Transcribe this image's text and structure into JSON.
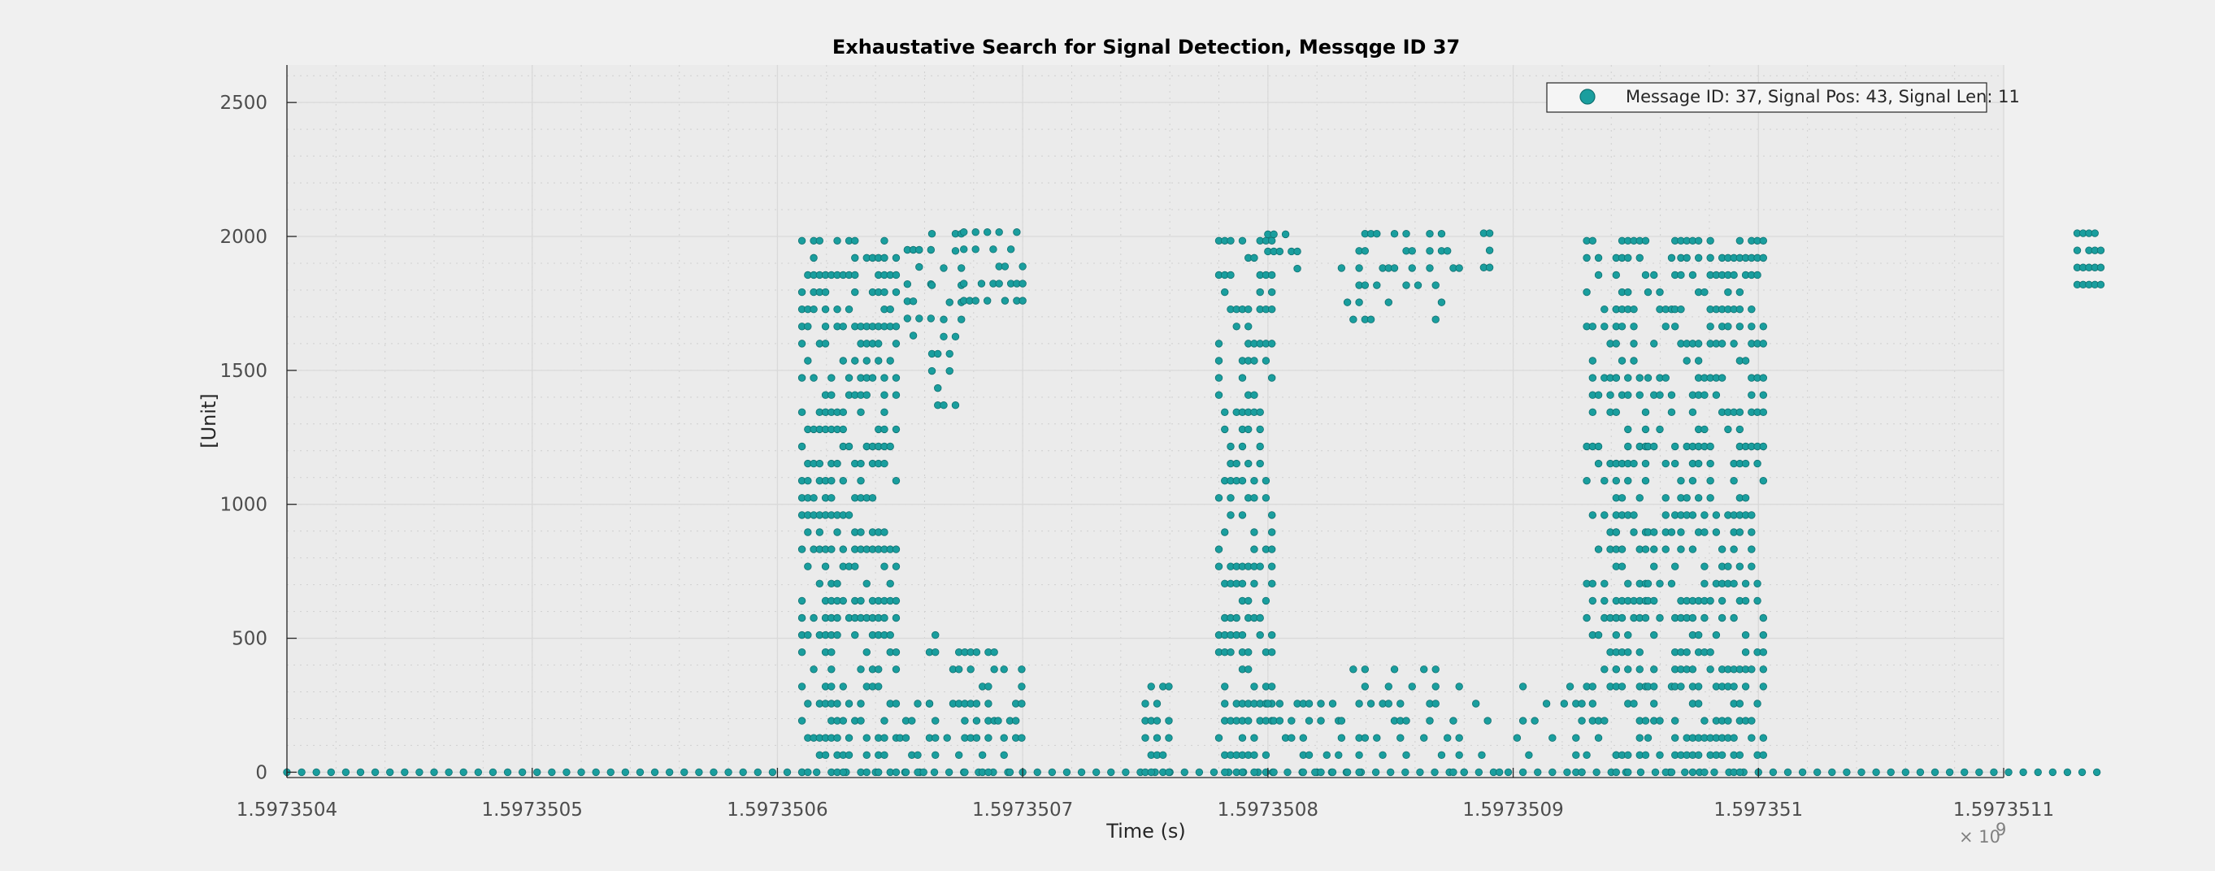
{
  "chart_data": {
    "type": "scatter",
    "title": "Exhaustative Search for Signal Detection, Messqge ID 37",
    "xlabel": "Time (s)",
    "ylabel": "[Unit]",
    "x_exponent_label": "× 10",
    "x_exponent_power": "9",
    "xlim": [
      1.5973504,
      1.5973511
    ],
    "ylim": [
      -20,
      2640
    ],
    "x_ticks": [
      1.5973504,
      1.5973505,
      1.5973506,
      1.5973507,
      1.5973508,
      1.5973509,
      1.597351,
      1.5973511
    ],
    "x_tick_labels": [
      "1.5973504",
      "1.5973505",
      "1.5973506",
      "1.5973507",
      "1.5973508",
      "1.5973509",
      "1.597351",
      "1.5973511"
    ],
    "y_ticks": [
      0,
      500,
      1000,
      1500,
      2000,
      2500
    ],
    "y_tick_labels": [
      "0",
      "500",
      "1000",
      "1500",
      "2000",
      "2500"
    ],
    "grid": true,
    "minor_grid": true,
    "legend_position": "top-right",
    "marker_color": "#1a9e9e",
    "marker_edge_color": "#0f7070",
    "series": [
      {
        "name": "Message ID: 37, Signal Pos: 43, Signal Len: 11",
        "color": "#1a9e9e",
        "baseline": {
          "x_start": 1.5973504,
          "x_end": 1.59735114,
          "step": 6e-09,
          "y": 0
        },
        "columns": [
          {
            "x_start": 1.59735061,
            "x_end": 1.597350649,
            "y_min": 0,
            "y_max": 2016,
            "density": 0.55
          },
          {
            "x_start": 1.59735065,
            "x_end": 1.597350662,
            "y_min": 0,
            "y_max": 290,
            "density": 0.5
          },
          {
            "x_start": 1.597350662,
            "x_end": 1.59735069,
            "y_min": 0,
            "y_max": 520,
            "density": 0.45
          },
          {
            "x_start": 1.59735069,
            "x_end": 1.5973507,
            "y_min": 0,
            "y_max": 420,
            "density": 0.5
          },
          {
            "x_start": 1.597350653,
            "x_end": 1.597350663,
            "y_min": 1630,
            "y_max": 2016,
            "density": 0.5
          },
          {
            "x_start": 1.597350663,
            "x_end": 1.597350677,
            "y_min": 1370,
            "y_max": 2016,
            "density": 0.4
          },
          {
            "x_start": 1.597350676,
            "x_end": 1.5973507,
            "y_min": 1760,
            "y_max": 2016,
            "density": 0.5
          },
          {
            "x_start": 1.59735075,
            "x_end": 1.59735076,
            "y_min": 0,
            "y_max": 350,
            "density": 0.6
          },
          {
            "x_start": 1.59735078,
            "x_end": 1.597350802,
            "y_min": 0,
            "y_max": 2016,
            "density": 0.55
          },
          {
            "x_start": 1.5973508,
            "x_end": 1.59735083,
            "y_min": 0,
            "y_max": 290,
            "density": 0.45
          },
          {
            "x_start": 1.5973508,
            "x_end": 1.597350812,
            "y_min": 1880,
            "y_max": 2016,
            "density": 0.5
          },
          {
            "x_start": 1.59735083,
            "x_end": 1.59735088,
            "y_min": 0,
            "y_max": 420,
            "density": 0.35
          },
          {
            "x_start": 1.59735083,
            "x_end": 1.59735088,
            "y_min": 1690,
            "y_max": 2016,
            "density": 0.35
          },
          {
            "x_start": 1.59735088,
            "x_end": 1.59735093,
            "y_min": 0,
            "y_max": 330,
            "density": 0.25
          },
          {
            "x_start": 1.597350888,
            "x_end": 1.597350892,
            "y_min": 1820,
            "y_max": 2016,
            "density": 0.6
          },
          {
            "x_start": 1.59735093,
            "x_end": 1.597350942,
            "y_min": 0,
            "y_max": 2016,
            "density": 0.4
          },
          {
            "x_start": 1.597350942,
            "x_end": 1.597350955,
            "y_min": 0,
            "y_max": 2016,
            "density": 0.55
          },
          {
            "x_start": 1.597350955,
            "x_end": 1.597350966,
            "y_min": 0,
            "y_max": 2016,
            "density": 0.35
          },
          {
            "x_start": 1.597350966,
            "x_end": 1.597351002,
            "y_min": 0,
            "y_max": 2016,
            "density": 0.55
          },
          {
            "x_start": 1.59735113,
            "x_end": 1.59735114,
            "y_min": 1820,
            "y_max": 2016,
            "density": 0.8
          }
        ]
      }
    ]
  }
}
